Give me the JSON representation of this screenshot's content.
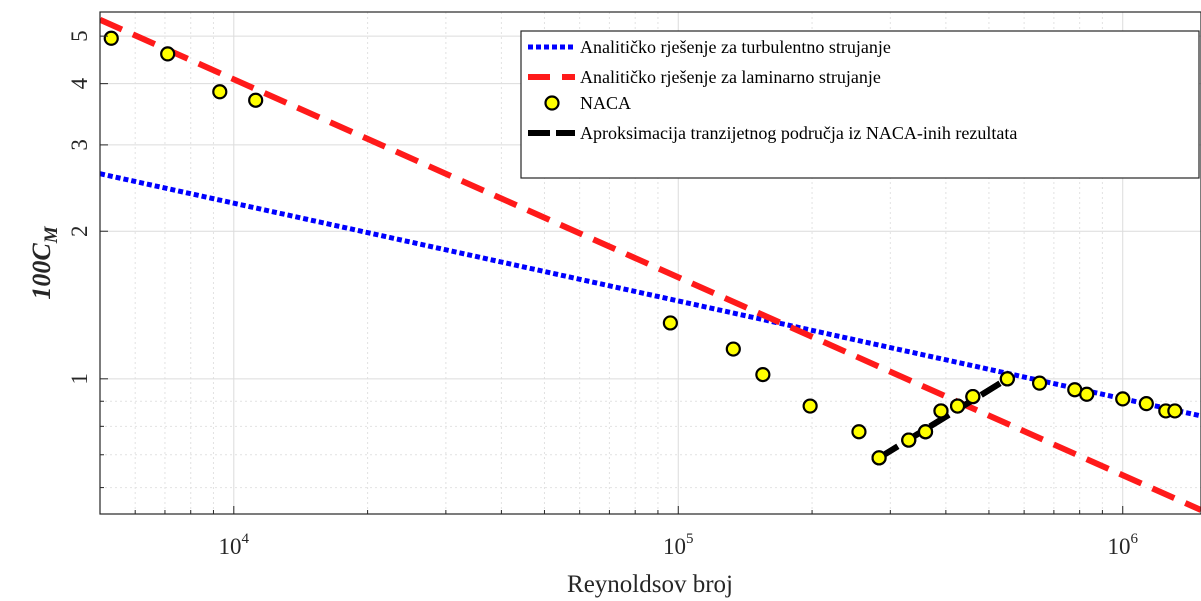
{
  "chart_data": {
    "type": "line",
    "xlabel": "Reynoldsov broj",
    "ylabel": {
      "main": "100C",
      "sub": "M"
    },
    "xscale": "log",
    "yscale": "log",
    "xlim": [
      5000,
      1500000
    ],
    "ylim": [
      0.53,
      5.6
    ],
    "grid": true,
    "legend_position": "top-right",
    "x_ticks": [
      {
        "base": "10",
        "exp": "4",
        "value": 10000
      },
      {
        "base": "10",
        "exp": "5",
        "value": 100000
      },
      {
        "base": "10",
        "exp": "6",
        "value": 1000000
      }
    ],
    "y_ticks": [
      {
        "label": "1",
        "value": 1
      },
      {
        "label": "2",
        "value": 2
      },
      {
        "label": "3",
        "value": 3
      },
      {
        "label": "4",
        "value": 4
      },
      {
        "label": "5",
        "value": 5
      }
    ],
    "series": [
      {
        "name": "Analitičko rješenje za turbulentno strujanje",
        "kind": "line",
        "style": "dotted",
        "color": "#0000ff",
        "x": [
          5000,
          1500000
        ],
        "y": [
          2.62,
          0.84
        ]
      },
      {
        "name": "Analitičko rješenje za laminarno strujanje",
        "kind": "line",
        "style": "dashed",
        "color": "#ff1a1a",
        "x": [
          5000,
          1500000
        ],
        "y": [
          5.4,
          0.54
        ]
      },
      {
        "name": "NACA",
        "kind": "scatter",
        "color": "#ffff00",
        "x": [
          5300,
          7100,
          9300,
          11200,
          96000,
          133000,
          155000,
          198000,
          255000,
          283000,
          330000,
          360000,
          390000,
          425000,
          460000,
          550000,
          650000,
          780000,
          830000,
          1000000,
          1130000,
          1250000,
          1310000
        ],
        "y": [
          4.95,
          4.6,
          3.85,
          3.7,
          1.3,
          1.15,
          1.02,
          0.88,
          0.78,
          0.69,
          0.75,
          0.78,
          0.86,
          0.88,
          0.92,
          1.0,
          0.98,
          0.95,
          0.93,
          0.91,
          0.89,
          0.86,
          0.86
        ]
      },
      {
        "name": "Aproksimacija tranzijetnog područja iz NACA-inih rezultata",
        "kind": "line",
        "style": "dashed",
        "color": "#000000",
        "x": [
          283000,
          550000
        ],
        "y": [
          0.69,
          1.0
        ]
      }
    ]
  }
}
